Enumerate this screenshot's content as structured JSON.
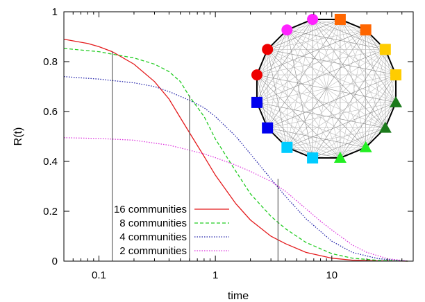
{
  "chart_data": {
    "type": "line",
    "xscale": "log",
    "xlim": [
      0.05,
      50
    ],
    "ylim": [
      0,
      1
    ],
    "xlabel": "time",
    "ylabel": "R(t)",
    "xticks": [
      {
        "value": 0.1,
        "label": "0.1"
      },
      {
        "value": 1,
        "label": "1"
      },
      {
        "value": 10,
        "label": "10"
      }
    ],
    "yticks": [
      {
        "value": 0,
        "label": "0"
      },
      {
        "value": 0.2,
        "label": "0.2"
      },
      {
        "value": 0.4,
        "label": "0.4"
      },
      {
        "value": 0.6,
        "label": "0.6"
      },
      {
        "value": 0.8,
        "label": "0.8"
      },
      {
        "value": 1,
        "label": "1"
      }
    ],
    "series": [
      {
        "name": "16 communities",
        "color": "#e41a1c",
        "dash": "solid",
        "points": [
          [
            0.05,
            0.89
          ],
          [
            0.08,
            0.873
          ],
          [
            0.1,
            0.86
          ],
          [
            0.13,
            0.84
          ],
          [
            0.2,
            0.79
          ],
          [
            0.3,
            0.72
          ],
          [
            0.4,
            0.65
          ],
          [
            0.5,
            0.575
          ],
          [
            0.6,
            0.515
          ],
          [
            0.8,
            0.42
          ],
          [
            1.0,
            0.345
          ],
          [
            1.5,
            0.23
          ],
          [
            2.0,
            0.165
          ],
          [
            3.0,
            0.1
          ],
          [
            4.0,
            0.07
          ],
          [
            6.0,
            0.035
          ],
          [
            10.0,
            0.012
          ],
          [
            15.0,
            0.004
          ],
          [
            25.0,
            0.001
          ],
          [
            45.0,
            0.0
          ]
        ]
      },
      {
        "name": "8 communities",
        "color": "#22cc22",
        "dash": "dashed",
        "points": [
          [
            0.05,
            0.853
          ],
          [
            0.1,
            0.84
          ],
          [
            0.13,
            0.83
          ],
          [
            0.2,
            0.815
          ],
          [
            0.3,
            0.79
          ],
          [
            0.4,
            0.76
          ],
          [
            0.5,
            0.72
          ],
          [
            0.6,
            0.66
          ],
          [
            0.8,
            0.58
          ],
          [
            1.0,
            0.49
          ],
          [
            1.5,
            0.36
          ],
          [
            2.0,
            0.27
          ],
          [
            3.0,
            0.18
          ],
          [
            4.0,
            0.13
          ],
          [
            6.0,
            0.075
          ],
          [
            10.0,
            0.03
          ],
          [
            15.0,
            0.012
          ],
          [
            25.0,
            0.003
          ],
          [
            45.0,
            0.0
          ]
        ]
      },
      {
        "name": "4 communities",
        "color": "#2222aa",
        "dash": "dotted",
        "points": [
          [
            0.05,
            0.74
          ],
          [
            0.1,
            0.73
          ],
          [
            0.2,
            0.715
          ],
          [
            0.3,
            0.7
          ],
          [
            0.4,
            0.68
          ],
          [
            0.6,
            0.645
          ],
          [
            0.8,
            0.615
          ],
          [
            1.0,
            0.58
          ],
          [
            1.5,
            0.5
          ],
          [
            2.0,
            0.43
          ],
          [
            3.0,
            0.33
          ],
          [
            4.0,
            0.26
          ],
          [
            6.0,
            0.17
          ],
          [
            10.0,
            0.08
          ],
          [
            15.0,
            0.035
          ],
          [
            25.0,
            0.01
          ],
          [
            45.0,
            0.0
          ]
        ]
      },
      {
        "name": "2 communities",
        "color": "#dd33dd",
        "dash": "dotted",
        "points": [
          [
            0.05,
            0.495
          ],
          [
            0.1,
            0.492
          ],
          [
            0.2,
            0.485
          ],
          [
            0.4,
            0.465
          ],
          [
            0.6,
            0.445
          ],
          [
            0.8,
            0.43
          ],
          [
            1.0,
            0.415
          ],
          [
            1.5,
            0.385
          ],
          [
            2.0,
            0.36
          ],
          [
            3.0,
            0.32
          ],
          [
            4.0,
            0.28
          ],
          [
            6.0,
            0.21
          ],
          [
            8.0,
            0.16
          ],
          [
            10.0,
            0.125
          ],
          [
            15.0,
            0.065
          ],
          [
            20.0,
            0.035
          ],
          [
            30.0,
            0.01
          ],
          [
            45.0,
            0.0
          ]
        ]
      }
    ],
    "markers": [
      {
        "x": 0.13,
        "y0": 0,
        "y1": 0.84
      },
      {
        "x": 0.6,
        "y0": 0,
        "y1": 0.665
      },
      {
        "x": 3.45,
        "y0": 0,
        "y1": 0.33
      }
    ],
    "legend": {
      "position": "bottom-left"
    },
    "inset": {
      "type": "network",
      "nodes": [
        {
          "shape": "circle",
          "color": "#ff22ff"
        },
        {
          "shape": "square",
          "color": "#ff6600"
        },
        {
          "shape": "square",
          "color": "#ff6600"
        },
        {
          "shape": "square",
          "color": "#ffcc00"
        },
        {
          "shape": "square",
          "color": "#ffcc00"
        },
        {
          "shape": "triangle",
          "color": "#1b7a1b"
        },
        {
          "shape": "triangle",
          "color": "#1b7a1b"
        },
        {
          "shape": "triangle",
          "color": "#22ee22"
        },
        {
          "shape": "triangle",
          "color": "#22ee22"
        },
        {
          "shape": "square",
          "color": "#00ccff"
        },
        {
          "shape": "square",
          "color": "#00ccff"
        },
        {
          "shape": "square",
          "color": "#0000ee"
        },
        {
          "shape": "square",
          "color": "#0000ee"
        },
        {
          "shape": "circle",
          "color": "#ee0000"
        },
        {
          "shape": "circle",
          "color": "#ee0000"
        },
        {
          "shape": "circle",
          "color": "#ff22ff"
        }
      ]
    }
  }
}
